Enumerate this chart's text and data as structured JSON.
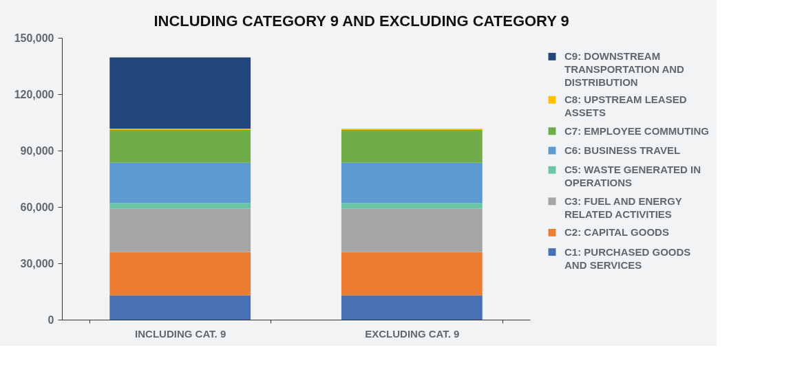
{
  "chart_data": {
    "type": "bar",
    "title": "INCLUDING CATEGORY 9 AND EXCLUDING CATEGORY 9",
    "stacked": true,
    "categories": [
      "INCLUDING CAT. 9",
      "EXCLUDING CAT. 9"
    ],
    "series": [
      {
        "name": "C1: PURCHASED GOODS AND SERVICES",
        "color": "#4870b5",
        "values": [
          13000,
          13000
        ]
      },
      {
        "name": "C2: CAPITAL GOODS",
        "color": "#ed7d31",
        "values": [
          23000,
          23000
        ]
      },
      {
        "name": "C3: FUEL AND ENERGY RELATED ACTIVITIES",
        "color": "#a5a5a5",
        "values": [
          23000,
          23000
        ]
      },
      {
        "name": "C5: WASTE GENERATED IN OPERATIONS",
        "color": "#6cc5a7",
        "values": [
          3000,
          3000
        ]
      },
      {
        "name": "C6: BUSINESS TRAVEL",
        "color": "#5b9bd2",
        "values": [
          21500,
          21500
        ]
      },
      {
        "name": "C7: EMPLOYEE COMMUTING",
        "color": "#71ac4a",
        "values": [
          17500,
          17500
        ]
      },
      {
        "name": "C8: UPSTREAM LEASED ASSETS",
        "color": "#ffc000",
        "values": [
          600,
          600
        ]
      },
      {
        "name": "C9: DOWNSTREAM TRANSPORTATION AND DISTRIBUTION",
        "color": "#22477a",
        "values": [
          38000,
          null
        ]
      }
    ],
    "ylim": [
      0,
      150000
    ],
    "yticks": [
      0,
      {
        "value": 30000,
        "label": "30,000"
      },
      {
        "value": 60000,
        "label": "60,000"
      },
      {
        "value": 90000,
        "label": "90,000"
      },
      {
        "value": 120000,
        "label": "120,000"
      },
      {
        "value": 150000,
        "label": "150,000"
      }
    ],
    "grid": false,
    "legend": "right"
  }
}
